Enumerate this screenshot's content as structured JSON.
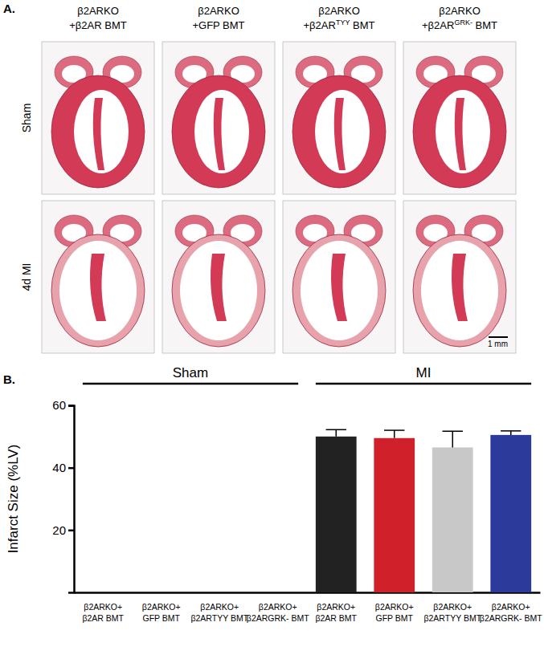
{
  "panel_a": {
    "label": "A.",
    "columns": [
      {
        "line1": "β2ARKO",
        "line2": {
          "text": "+β2AR BMT"
        }
      },
      {
        "line1": "β2ARKO",
        "line2": {
          "text": "+GFP BMT"
        }
      },
      {
        "line1": "β2ARKO",
        "line2": {
          "text": "+β2AR",
          "sup": "TYY",
          "tail": " BMT"
        }
      },
      {
        "line1": "β2ARKO",
        "line2": {
          "text": "+β2AR",
          "sup": "GRK-",
          "tail": " BMT"
        }
      }
    ],
    "rows": [
      "Sham",
      "4d MI"
    ],
    "scale_bar": "1 mm"
  },
  "panel_b_label": "B.",
  "chart_data": {
    "type": "bar",
    "categories": [
      "β2ARKO+ β2AR BMT",
      "β2ARKO+ GFP BMT",
      "β2ARKO+ β2ARTYY BMT",
      "β2ARKO+ β2ARGRK- BMT",
      "β2ARKO+ β2AR BMT",
      "β2ARKO+ GFP BMT",
      "β2ARKO+ β2ARTYY BMT",
      "β2ARKO+ β2ARGRK- BMT"
    ],
    "values": [
      0,
      0,
      0,
      0,
      50,
      49.5,
      46.5,
      50.5
    ],
    "errors": [
      0,
      0,
      0,
      0,
      2.2,
      2.5,
      5.2,
      1.3
    ],
    "colors": [
      "#222222",
      "#d0202a",
      "#c8c8c8",
      "#2b3a9b",
      "#222222",
      "#d0202a",
      "#c8c8c8",
      "#2b3a9b"
    ],
    "ylim": [
      0,
      60
    ],
    "yticks": [
      20,
      40,
      60
    ],
    "y_label": "Infarct Size (%LV)",
    "annotations": [
      "Sham",
      "MI"
    ]
  }
}
